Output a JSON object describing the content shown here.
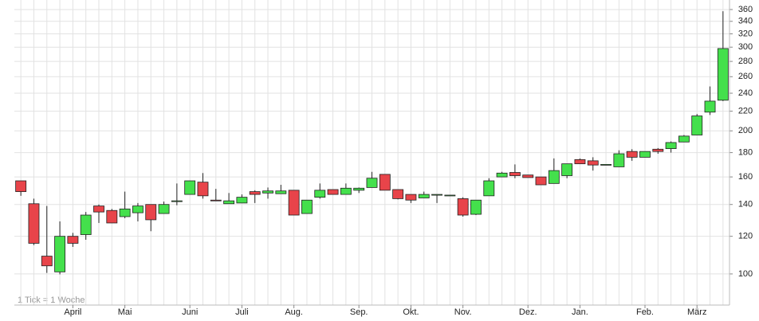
{
  "chart_data": {
    "type": "candlestick",
    "annotation": "1 Tick = 1 Woche",
    "categories": [
      null,
      null,
      null,
      null,
      "April",
      null,
      null,
      null,
      "Mai",
      null,
      null,
      null,
      null,
      "Juni",
      null,
      null,
      null,
      "Juli",
      null,
      null,
      null,
      "Aug.",
      null,
      null,
      null,
      null,
      "Sep.",
      null,
      null,
      null,
      "Okt.",
      null,
      null,
      null,
      "Nov.",
      null,
      null,
      null,
      null,
      "Dez.",
      null,
      null,
      null,
      "Jan.",
      null,
      null,
      null,
      null,
      "Feb.",
      null,
      null,
      null,
      "März",
      null,
      null
    ],
    "open": [
      157,
      140.5,
      109,
      101,
      120,
      121,
      139,
      136,
      132,
      134.5,
      140,
      134,
      142,
      147,
      156,
      143,
      140.5,
      141,
      149,
      148,
      147.5,
      150,
      134,
      145,
      150.5,
      147,
      150,
      152,
      162,
      150.5,
      147,
      144.5,
      147,
      146.5,
      144,
      133.5,
      146,
      160,
      163.5,
      161.5,
      160,
      155,
      161,
      174,
      173,
      170,
      168,
      181,
      176,
      183,
      183.5,
      189.5,
      196,
      219,
      232
    ],
    "high": [
      157,
      144,
      139,
      129,
      122,
      135,
      140,
      137,
      149,
      141,
      140,
      142,
      155,
      157,
      163,
      151,
      148,
      147,
      150,
      152,
      154,
      150,
      143,
      155,
      150.5,
      155,
      152,
      164,
      162,
      150.5,
      147,
      149,
      147,
      146.5,
      145,
      143,
      159,
      164,
      170,
      161.5,
      160,
      175,
      170.5,
      175,
      176,
      170,
      182,
      183,
      181,
      184,
      190,
      196,
      217,
      248,
      357
    ],
    "low": [
      146,
      115,
      100.5,
      99.8,
      114,
      118,
      128,
      128,
      131,
      129,
      123,
      134,
      139.5,
      147,
      144,
      142.5,
      140.5,
      141,
      141,
      144,
      147.5,
      133,
      134,
      144,
      147,
      147,
      148,
      152,
      150,
      143.5,
      141,
      144.5,
      141,
      146.5,
      132,
      133,
      146,
      160,
      159,
      159.5,
      154,
      155,
      159,
      170.5,
      165,
      170,
      168,
      173,
      176,
      179,
      180,
      189.5,
      196,
      216,
      231
    ],
    "close": [
      149,
      116,
      104,
      120,
      116,
      133,
      135,
      128,
      137,
      139,
      130,
      140,
      142.5,
      157,
      146,
      142.5,
      142.5,
      145,
      147,
      149.5,
      149.5,
      133,
      143,
      150,
      147,
      151.5,
      151.5,
      159,
      150,
      144,
      143,
      147,
      147,
      146.5,
      133,
      143,
      157,
      163,
      161,
      159.5,
      154,
      165,
      170.5,
      170.5,
      169.5,
      170,
      179,
      176,
      181,
      181,
      189,
      195,
      215,
      231,
      298
    ],
    "up_color": "#44e04c",
    "down_color": "#e8444a",
    "log_scale": true,
    "grid": true,
    "ylim": [
      86,
      377
    ],
    "yticks": [
      100,
      120,
      140,
      160,
      180,
      200,
      220,
      240,
      260,
      280,
      300,
      320,
      340,
      360
    ]
  }
}
